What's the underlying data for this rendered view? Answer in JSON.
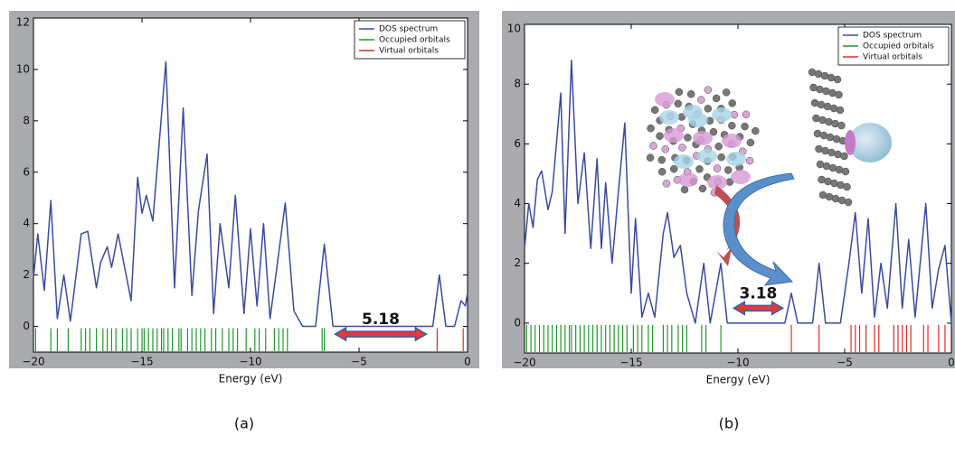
{
  "chart_data": [
    {
      "type": "line",
      "caption": "(a)",
      "x_label": "Energy (eV)",
      "xlim": [
        -20,
        0
      ],
      "ylim": [
        -1,
        12
      ],
      "xticks": [
        {
          "value": -20,
          "label": "−20"
        },
        {
          "value": -15,
          "label": "−15"
        },
        {
          "value": -10,
          "label": "−10"
        },
        {
          "value": -5,
          "label": "−5"
        },
        0
      ],
      "yticks": [
        0,
        2,
        4,
        6,
        8,
        10,
        12
      ],
      "legend": "upper right",
      "series": [
        {
          "name": "DOS spectrum",
          "color": "#3a4b9f",
          "x": [
            -20,
            -19.8,
            -19.5,
            -19.2,
            -18.9,
            -18.6,
            -18.3,
            -17.8,
            -17.5,
            -17.1,
            -16.9,
            -16.6,
            -16.4,
            -16.1,
            -15.8,
            -15.5,
            -15.2,
            -15.0,
            -14.8,
            -14.5,
            -13.9,
            -13.5,
            -13.1,
            -12.7,
            -12.4,
            -12.0,
            -11.7,
            -11.4,
            -11.0,
            -10.7,
            -10.3,
            -10.0,
            -9.7,
            -9.4,
            -9.1,
            -8.8,
            -8.4,
            -8.0,
            -7.6,
            -7.0,
            -6.6,
            -6.2,
            -1.6,
            -1.3,
            -1.0,
            -0.6,
            -0.3,
            -0.1,
            0
          ],
          "values": [
            1.9,
            3.6,
            1.4,
            4.9,
            0.3,
            2.0,
            0.2,
            3.6,
            3.7,
            1.5,
            2.5,
            3.1,
            2.3,
            3.6,
            2.3,
            1.0,
            5.8,
            4.4,
            5.1,
            4.1,
            10.3,
            1.5,
            8.5,
            1.2,
            4.5,
            6.7,
            0.5,
            4.0,
            1.5,
            5.1,
            0.5,
            3.8,
            0.8,
            4.0,
            0.3,
            2.2,
            4.8,
            0.6,
            0.0,
            0.0,
            3.2,
            0.0,
            0.0,
            2.0,
            0.0,
            0.0,
            1.0,
            0.8,
            1.3
          ]
        },
        {
          "name": "Occupied orbitals",
          "color": "#1f9a2a",
          "x": [
            -19.9,
            -19.2,
            -18.9,
            -18.4,
            -17.8,
            -17.6,
            -17.4,
            -17.1,
            -16.8,
            -16.6,
            -16.4,
            -16.2,
            -15.9,
            -15.7,
            -15.5,
            -15.2,
            -15.0,
            -14.9,
            -14.7,
            -14.5,
            -14.3,
            -14.1,
            -14.0,
            -13.8,
            -13.6,
            -13.3,
            -13.2,
            -12.9,
            -12.7,
            -12.5,
            -12.3,
            -12.1,
            -11.8,
            -11.6,
            -11.3,
            -11.0,
            -10.8,
            -10.6,
            -10.2,
            -9.8,
            -9.6,
            -9.3,
            -8.9,
            -8.7,
            -8.5,
            -8.3,
            -6.7,
            -6.6
          ]
        },
        {
          "name": "Virtual orbitals",
          "color": "#e02a2a",
          "x": [
            -1.4,
            -0.2
          ]
        }
      ],
      "gap_arrow": {
        "from": -6.1,
        "to": -1.9,
        "y": -0.3,
        "label": "5.18"
      }
    },
    {
      "type": "line",
      "caption": "(b)",
      "x_label": "Energy (eV)",
      "xlim": [
        -20,
        0
      ],
      "ylim": [
        -1,
        10
      ],
      "xticks": [
        {
          "value": -20,
          "label": "−20"
        },
        {
          "value": -15,
          "label": "−15"
        },
        {
          "value": -10,
          "label": "−10"
        },
        {
          "value": -5,
          "label": "−5"
        },
        0
      ],
      "yticks": [
        0,
        2,
        4,
        6,
        8,
        10
      ],
      "legend": "upper right",
      "series": [
        {
          "name": "DOS spectrum",
          "color": "#3a4b9f",
          "x": [
            -20,
            -19.8,
            -19.6,
            -19.4,
            -19.2,
            -18.9,
            -18.7,
            -18.3,
            -18.1,
            -17.8,
            -17.5,
            -17.2,
            -16.9,
            -16.6,
            -16.4,
            -16.2,
            -15.9,
            -15.6,
            -15.3,
            -15.0,
            -14.8,
            -14.5,
            -14.2,
            -13.9,
            -13.5,
            -13.3,
            -13.0,
            -12.7,
            -12.4,
            -12.0,
            -11.6,
            -11.3,
            -10.8,
            -10.5,
            -7.8,
            -7.5,
            -7.2,
            -6.5,
            -6.2,
            -5.9,
            -5.2,
            -4.8,
            -4.5,
            -4.2,
            -3.9,
            -3.6,
            -3.3,
            -3.0,
            -2.6,
            -2.3,
            -2.0,
            -1.7,
            -1.2,
            -0.9,
            -0.6,
            -0.3,
            0
          ],
          "values": [
            2.5,
            4.0,
            3.2,
            4.8,
            5.1,
            3.8,
            4.4,
            7.7,
            3.0,
            8.8,
            4.0,
            5.7,
            2.5,
            5.5,
            2.5,
            4.7,
            2.0,
            4.4,
            6.7,
            1.0,
            3.5,
            0.2,
            1.0,
            0.2,
            3.0,
            3.7,
            2.2,
            2.6,
            1.0,
            0.0,
            2.0,
            0.0,
            2.0,
            0.0,
            0.0,
            1.0,
            0.0,
            0.0,
            2.0,
            0.0,
            0.0,
            2.0,
            3.7,
            1.0,
            3.5,
            0.2,
            2.0,
            0.5,
            4.0,
            0.5,
            2.8,
            0.2,
            4.0,
            0.5,
            1.8,
            2.6,
            0.0
          ]
        },
        {
          "name": "Occupied orbitals",
          "color": "#1f9a2a",
          "x": [
            -19.9,
            -19.7,
            -19.5,
            -19.3,
            -19.1,
            -18.9,
            -18.7,
            -18.5,
            -18.3,
            -18.1,
            -17.9,
            -17.8,
            -17.6,
            -17.4,
            -17.2,
            -17.0,
            -16.8,
            -16.6,
            -16.4,
            -16.2,
            -16.0,
            -15.8,
            -15.6,
            -15.4,
            -15.2,
            -14.9,
            -14.7,
            -14.5,
            -14.2,
            -14.0,
            -13.5,
            -13.3,
            -13.1,
            -12.8,
            -12.6,
            -12.4,
            -11.7,
            -11.5,
            -10.8
          ]
        },
        {
          "name": "Virtual orbitals",
          "color": "#e02a2a",
          "x": [
            -7.5,
            -6.2,
            -4.7,
            -4.5,
            -4.3,
            -4.0,
            -3.6,
            -3.4,
            -2.7,
            -2.5,
            -2.3,
            -2.1,
            -1.9,
            -1.3,
            -1.1,
            -0.6,
            -0.3
          ]
        }
      ],
      "gap_arrow": {
        "from": -10.2,
        "to": -7.9,
        "y": 0.5,
        "label": "3.18"
      }
    }
  ]
}
